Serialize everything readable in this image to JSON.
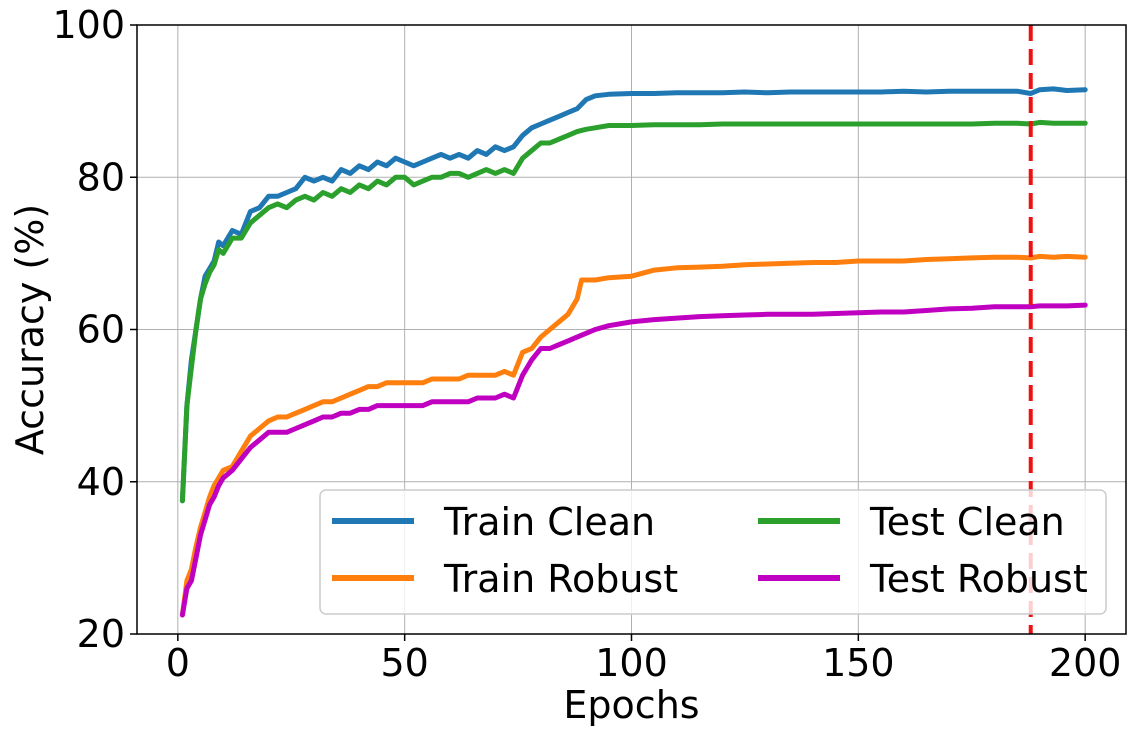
{
  "chart_data": {
    "type": "line",
    "xlabel": "Epochs",
    "ylabel": "Accuracy (%)",
    "xlim": [
      -9,
      209
    ],
    "ylim": [
      20,
      100
    ],
    "xticks": [
      0,
      50,
      100,
      150,
      200
    ],
    "yticks": [
      20,
      40,
      60,
      80,
      100
    ],
    "grid": true,
    "legend_position": "lower-right",
    "legend_columns": 2,
    "vline": {
      "x": 188,
      "color": "#ee1111",
      "style": "dashed"
    },
    "series": [
      {
        "name": "Train Clean",
        "color": "#1f77b4",
        "points": [
          [
            1,
            37.5
          ],
          [
            2,
            50
          ],
          [
            3,
            56
          ],
          [
            4,
            60
          ],
          [
            5,
            64
          ],
          [
            6,
            67
          ],
          [
            7,
            68
          ],
          [
            8,
            69
          ],
          [
            9,
            71.5
          ],
          [
            10,
            71
          ],
          [
            12,
            73
          ],
          [
            14,
            72.5
          ],
          [
            16,
            75.5
          ],
          [
            18,
            76
          ],
          [
            20,
            77.5
          ],
          [
            22,
            77.5
          ],
          [
            24,
            78
          ],
          [
            26,
            78.5
          ],
          [
            28,
            80
          ],
          [
            30,
            79.5
          ],
          [
            32,
            80
          ],
          [
            34,
            79.5
          ],
          [
            36,
            81
          ],
          [
            38,
            80.5
          ],
          [
            40,
            81.5
          ],
          [
            42,
            81
          ],
          [
            44,
            82
          ],
          [
            46,
            81.5
          ],
          [
            48,
            82.5
          ],
          [
            50,
            82
          ],
          [
            52,
            81.5
          ],
          [
            54,
            82
          ],
          [
            56,
            82.5
          ],
          [
            58,
            83
          ],
          [
            60,
            82.5
          ],
          [
            62,
            83
          ],
          [
            64,
            82.5
          ],
          [
            66,
            83.5
          ],
          [
            68,
            83
          ],
          [
            70,
            84
          ],
          [
            72,
            83.5
          ],
          [
            74,
            84
          ],
          [
            76,
            85.5
          ],
          [
            78,
            86.5
          ],
          [
            80,
            87
          ],
          [
            82,
            87.5
          ],
          [
            84,
            88
          ],
          [
            86,
            88.5
          ],
          [
            88,
            89
          ],
          [
            90,
            90.2
          ],
          [
            92,
            90.7
          ],
          [
            95,
            90.9
          ],
          [
            100,
            91
          ],
          [
            105,
            91
          ],
          [
            110,
            91.1
          ],
          [
            115,
            91.1
          ],
          [
            120,
            91.1
          ],
          [
            125,
            91.2
          ],
          [
            130,
            91.1
          ],
          [
            135,
            91.2
          ],
          [
            140,
            91.2
          ],
          [
            145,
            91.2
          ],
          [
            150,
            91.2
          ],
          [
            155,
            91.2
          ],
          [
            160,
            91.3
          ],
          [
            165,
            91.2
          ],
          [
            170,
            91.3
          ],
          [
            175,
            91.3
          ],
          [
            180,
            91.3
          ],
          [
            185,
            91.3
          ],
          [
            188,
            91
          ],
          [
            190,
            91.5
          ],
          [
            193,
            91.6
          ],
          [
            196,
            91.4
          ],
          [
            200,
            91.5
          ]
        ]
      },
      {
        "name": "Train Robust",
        "color": "#ff7f0e",
        "points": [
          [
            1,
            22.5
          ],
          [
            2,
            27
          ],
          [
            3,
            28.5
          ],
          [
            4,
            31.5
          ],
          [
            5,
            34
          ],
          [
            6,
            36
          ],
          [
            7,
            38
          ],
          [
            8,
            39.5
          ],
          [
            9,
            40.5
          ],
          [
            10,
            41.5
          ],
          [
            12,
            42
          ],
          [
            14,
            44
          ],
          [
            16,
            46
          ],
          [
            18,
            47
          ],
          [
            20,
            48
          ],
          [
            22,
            48.5
          ],
          [
            24,
            48.5
          ],
          [
            26,
            49
          ],
          [
            28,
            49.5
          ],
          [
            30,
            50
          ],
          [
            32,
            50.5
          ],
          [
            34,
            50.5
          ],
          [
            36,
            51
          ],
          [
            38,
            51.5
          ],
          [
            40,
            52
          ],
          [
            42,
            52.5
          ],
          [
            44,
            52.5
          ],
          [
            46,
            53
          ],
          [
            48,
            53
          ],
          [
            50,
            53
          ],
          [
            52,
            53
          ],
          [
            54,
            53
          ],
          [
            56,
            53.5
          ],
          [
            58,
            53.5
          ],
          [
            60,
            53.5
          ],
          [
            62,
            53.5
          ],
          [
            64,
            54
          ],
          [
            66,
            54
          ],
          [
            68,
            54
          ],
          [
            70,
            54
          ],
          [
            72,
            54.5
          ],
          [
            74,
            54
          ],
          [
            76,
            57
          ],
          [
            78,
            57.5
          ],
          [
            80,
            59
          ],
          [
            82,
            60
          ],
          [
            84,
            61
          ],
          [
            86,
            62
          ],
          [
            88,
            64
          ],
          [
            89,
            66.5
          ],
          [
            92,
            66.5
          ],
          [
            95,
            66.8
          ],
          [
            100,
            67
          ],
          [
            105,
            67.8
          ],
          [
            110,
            68.1
          ],
          [
            115,
            68.2
          ],
          [
            120,
            68.3
          ],
          [
            125,
            68.5
          ],
          [
            130,
            68.6
          ],
          [
            135,
            68.7
          ],
          [
            140,
            68.8
          ],
          [
            145,
            68.8
          ],
          [
            150,
            69
          ],
          [
            155,
            69
          ],
          [
            160,
            69
          ],
          [
            165,
            69.2
          ],
          [
            170,
            69.3
          ],
          [
            175,
            69.4
          ],
          [
            180,
            69.5
          ],
          [
            185,
            69.5
          ],
          [
            188,
            69.4
          ],
          [
            190,
            69.6
          ],
          [
            193,
            69.5
          ],
          [
            196,
            69.6
          ],
          [
            200,
            69.5
          ]
        ]
      },
      {
        "name": "Test Clean",
        "color": "#2ca02c",
        "points": [
          [
            1,
            37.5
          ],
          [
            2,
            50
          ],
          [
            3,
            55
          ],
          [
            4,
            60
          ],
          [
            5,
            64
          ],
          [
            6,
            66
          ],
          [
            7,
            67.5
          ],
          [
            8,
            68.5
          ],
          [
            9,
            70.5
          ],
          [
            10,
            70
          ],
          [
            12,
            72
          ],
          [
            14,
            72
          ],
          [
            16,
            74
          ],
          [
            18,
            75
          ],
          [
            20,
            76
          ],
          [
            22,
            76.5
          ],
          [
            24,
            76
          ],
          [
            26,
            77
          ],
          [
            28,
            77.5
          ],
          [
            30,
            77
          ],
          [
            32,
            78
          ],
          [
            34,
            77.5
          ],
          [
            36,
            78.5
          ],
          [
            38,
            78
          ],
          [
            40,
            79
          ],
          [
            42,
            78.5
          ],
          [
            44,
            79.5
          ],
          [
            46,
            79
          ],
          [
            48,
            80
          ],
          [
            50,
            80
          ],
          [
            52,
            79
          ],
          [
            54,
            79.5
          ],
          [
            56,
            80
          ],
          [
            58,
            80
          ],
          [
            60,
            80.5
          ],
          [
            62,
            80.5
          ],
          [
            64,
            80
          ],
          [
            66,
            80.5
          ],
          [
            68,
            81
          ],
          [
            70,
            80.5
          ],
          [
            72,
            81
          ],
          [
            74,
            80.5
          ],
          [
            76,
            82.5
          ],
          [
            78,
            83.5
          ],
          [
            80,
            84.5
          ],
          [
            82,
            84.5
          ],
          [
            84,
            85
          ],
          [
            86,
            85.5
          ],
          [
            88,
            86
          ],
          [
            90,
            86.3
          ],
          [
            92,
            86.5
          ],
          [
            95,
            86.8
          ],
          [
            100,
            86.8
          ],
          [
            105,
            86.9
          ],
          [
            110,
            86.9
          ],
          [
            115,
            86.9
          ],
          [
            120,
            87
          ],
          [
            125,
            87
          ],
          [
            130,
            87
          ],
          [
            135,
            87
          ],
          [
            140,
            87
          ],
          [
            145,
            87
          ],
          [
            150,
            87
          ],
          [
            155,
            87
          ],
          [
            160,
            87
          ],
          [
            165,
            87
          ],
          [
            170,
            87
          ],
          [
            175,
            87
          ],
          [
            180,
            87.1
          ],
          [
            185,
            87.1
          ],
          [
            188,
            87
          ],
          [
            190,
            87.2
          ],
          [
            193,
            87.1
          ],
          [
            196,
            87.1
          ],
          [
            200,
            87.1
          ]
        ]
      },
      {
        "name": "Test Robust",
        "color": "#c000c0",
        "points": [
          [
            1,
            22.5
          ],
          [
            2,
            26
          ],
          [
            3,
            27
          ],
          [
            4,
            30
          ],
          [
            5,
            33
          ],
          [
            6,
            35
          ],
          [
            7,
            37
          ],
          [
            8,
            38
          ],
          [
            9,
            39.5
          ],
          [
            10,
            40.5
          ],
          [
            12,
            41.5
          ],
          [
            14,
            43
          ],
          [
            16,
            44.5
          ],
          [
            18,
            45.5
          ],
          [
            20,
            46.5
          ],
          [
            22,
            46.5
          ],
          [
            24,
            46.5
          ],
          [
            26,
            47
          ],
          [
            28,
            47.5
          ],
          [
            30,
            48
          ],
          [
            32,
            48.5
          ],
          [
            34,
            48.5
          ],
          [
            36,
            49
          ],
          [
            38,
            49
          ],
          [
            40,
            49.5
          ],
          [
            42,
            49.5
          ],
          [
            44,
            50
          ],
          [
            46,
            50
          ],
          [
            48,
            50
          ],
          [
            50,
            50
          ],
          [
            52,
            50
          ],
          [
            54,
            50
          ],
          [
            56,
            50.5
          ],
          [
            58,
            50.5
          ],
          [
            60,
            50.5
          ],
          [
            62,
            50.5
          ],
          [
            64,
            50.5
          ],
          [
            66,
            51
          ],
          [
            68,
            51
          ],
          [
            70,
            51
          ],
          [
            72,
            51.5
          ],
          [
            74,
            51
          ],
          [
            76,
            54
          ],
          [
            78,
            56
          ],
          [
            80,
            57.5
          ],
          [
            82,
            57.5
          ],
          [
            84,
            58
          ],
          [
            86,
            58.5
          ],
          [
            88,
            59
          ],
          [
            90,
            59.5
          ],
          [
            92,
            60
          ],
          [
            95,
            60.5
          ],
          [
            100,
            61
          ],
          [
            105,
            61.3
          ],
          [
            110,
            61.5
          ],
          [
            115,
            61.7
          ],
          [
            120,
            61.8
          ],
          [
            125,
            61.9
          ],
          [
            130,
            62
          ],
          [
            135,
            62
          ],
          [
            140,
            62
          ],
          [
            145,
            62.1
          ],
          [
            150,
            62.2
          ],
          [
            155,
            62.3
          ],
          [
            160,
            62.3
          ],
          [
            165,
            62.5
          ],
          [
            170,
            62.7
          ],
          [
            175,
            62.8
          ],
          [
            180,
            63
          ],
          [
            185,
            63
          ],
          [
            188,
            63
          ],
          [
            190,
            63.1
          ],
          [
            193,
            63.1
          ],
          [
            196,
            63.1
          ],
          [
            200,
            63.2
          ]
        ]
      }
    ]
  }
}
